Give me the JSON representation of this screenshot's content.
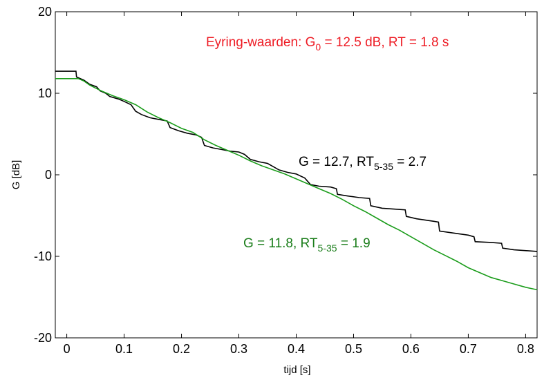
{
  "chart_data": {
    "type": "line",
    "title": "",
    "xlabel": "tijd  [s]",
    "ylabel": "G  [dB]",
    "xlim": [
      -0.02,
      0.82
    ],
    "ylim": [
      -20,
      20
    ],
    "xticks": [
      0,
      0.1,
      0.2,
      0.3,
      0.4,
      0.5,
      0.6,
      0.7,
      0.8
    ],
    "xtick_labels": [
      "0",
      "0.1",
      "0.2",
      "0.3",
      "0.4",
      "0.5",
      "0.6",
      "0.7",
      "0.8"
    ],
    "yticks": [
      20,
      10,
      0,
      -10,
      -20
    ],
    "ytick_labels": [
      "20",
      "10",
      "0",
      "-10",
      "-20"
    ],
    "grid": false,
    "legend": "none",
    "annotations": {
      "eyring": {
        "prefix": "Eyring-waarden:  G",
        "sub": "0",
        "suffix": " = 12.5 dB,   RT = 1.8 s",
        "color": "#ee1c25"
      },
      "black": {
        "prefix": "G = 12.7,   RT",
        "sub": "5-35",
        "suffix": " = 2.7",
        "color": "#000000"
      },
      "green": {
        "prefix": "G = 11.8,   RT",
        "sub": "5-35",
        "suffix": " = 1.9",
        "color": "#1a7d1a"
      }
    },
    "series": [
      {
        "color": "#000000",
        "points": [
          [
            -0.02,
            12.7
          ],
          [
            0.016,
            12.7
          ],
          [
            0.017,
            12.0
          ],
          [
            0.03,
            11.6
          ],
          [
            0.04,
            11.1
          ],
          [
            0.052,
            10.8
          ],
          [
            0.058,
            10.3
          ],
          [
            0.068,
            10.0
          ],
          [
            0.075,
            9.6
          ],
          [
            0.09,
            9.3
          ],
          [
            0.1,
            9.0
          ],
          [
            0.112,
            8.6
          ],
          [
            0.12,
            7.8
          ],
          [
            0.13,
            7.4
          ],
          [
            0.145,
            7.0
          ],
          [
            0.16,
            6.8
          ],
          [
            0.175,
            6.6
          ],
          [
            0.18,
            5.8
          ],
          [
            0.195,
            5.4
          ],
          [
            0.21,
            5.1
          ],
          [
            0.225,
            4.9
          ],
          [
            0.235,
            4.6
          ],
          [
            0.24,
            3.6
          ],
          [
            0.255,
            3.3
          ],
          [
            0.27,
            3.1
          ],
          [
            0.285,
            2.9
          ],
          [
            0.3,
            2.8
          ],
          [
            0.31,
            2.5
          ],
          [
            0.32,
            1.9
          ],
          [
            0.335,
            1.6
          ],
          [
            0.35,
            1.4
          ],
          [
            0.36,
            1.0
          ],
          [
            0.37,
            0.6
          ],
          [
            0.385,
            0.3
          ],
          [
            0.4,
            0.1
          ],
          [
            0.415,
            -0.4
          ],
          [
            0.425,
            -1.2
          ],
          [
            0.44,
            -1.4
          ],
          [
            0.46,
            -1.5
          ],
          [
            0.47,
            -1.7
          ],
          [
            0.472,
            -2.4
          ],
          [
            0.49,
            -2.6
          ],
          [
            0.51,
            -2.8
          ],
          [
            0.528,
            -2.9
          ],
          [
            0.53,
            -3.8
          ],
          [
            0.55,
            -4.1
          ],
          [
            0.57,
            -4.2
          ],
          [
            0.59,
            -4.3
          ],
          [
            0.592,
            -5.1
          ],
          [
            0.61,
            -5.4
          ],
          [
            0.64,
            -5.7
          ],
          [
            0.648,
            -5.8
          ],
          [
            0.65,
            -6.9
          ],
          [
            0.67,
            -7.1
          ],
          [
            0.7,
            -7.4
          ],
          [
            0.71,
            -7.6
          ],
          [
            0.712,
            -8.2
          ],
          [
            0.74,
            -8.3
          ],
          [
            0.758,
            -8.4
          ],
          [
            0.76,
            -9.0
          ],
          [
            0.78,
            -9.2
          ],
          [
            0.82,
            -9.4
          ]
        ]
      },
      {
        "color": "#1a9c1a",
        "points": [
          [
            -0.02,
            11.8
          ],
          [
            0.02,
            11.8
          ],
          [
            0.03,
            11.5
          ],
          [
            0.04,
            11.0
          ],
          [
            0.06,
            10.3
          ],
          [
            0.08,
            9.7
          ],
          [
            0.1,
            9.2
          ],
          [
            0.12,
            8.6
          ],
          [
            0.14,
            7.7
          ],
          [
            0.16,
            7.0
          ],
          [
            0.18,
            6.4
          ],
          [
            0.2,
            5.7
          ],
          [
            0.22,
            5.2
          ],
          [
            0.24,
            4.3
          ],
          [
            0.26,
            3.6
          ],
          [
            0.28,
            3.0
          ],
          [
            0.3,
            2.4
          ],
          [
            0.32,
            1.7
          ],
          [
            0.34,
            1.1
          ],
          [
            0.36,
            0.6
          ],
          [
            0.38,
            0.1
          ],
          [
            0.4,
            -0.5
          ],
          [
            0.42,
            -1.1
          ],
          [
            0.44,
            -1.7
          ],
          [
            0.46,
            -2.3
          ],
          [
            0.48,
            -3.0
          ],
          [
            0.5,
            -3.8
          ],
          [
            0.52,
            -4.5
          ],
          [
            0.54,
            -5.3
          ],
          [
            0.56,
            -6.1
          ],
          [
            0.58,
            -6.8
          ],
          [
            0.6,
            -7.6
          ],
          [
            0.62,
            -8.4
          ],
          [
            0.64,
            -9.2
          ],
          [
            0.66,
            -9.9
          ],
          [
            0.68,
            -10.6
          ],
          [
            0.7,
            -11.4
          ],
          [
            0.72,
            -12.0
          ],
          [
            0.74,
            -12.6
          ],
          [
            0.76,
            -13.0
          ],
          [
            0.78,
            -13.4
          ],
          [
            0.8,
            -13.8
          ],
          [
            0.82,
            -14.1
          ]
        ]
      }
    ]
  }
}
